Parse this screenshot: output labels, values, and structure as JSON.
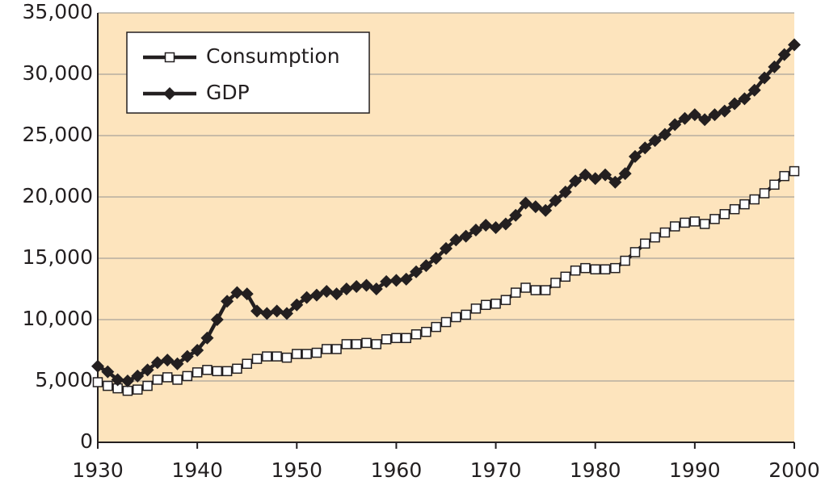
{
  "chart_data": {
    "type": "line",
    "x": [
      1930,
      1931,
      1932,
      1933,
      1934,
      1935,
      1936,
      1937,
      1938,
      1939,
      1940,
      1941,
      1942,
      1943,
      1944,
      1945,
      1946,
      1947,
      1948,
      1949,
      1950,
      1951,
      1952,
      1953,
      1954,
      1955,
      1956,
      1957,
      1958,
      1959,
      1960,
      1961,
      1962,
      1963,
      1964,
      1965,
      1966,
      1967,
      1968,
      1969,
      1970,
      1971,
      1972,
      1973,
      1974,
      1975,
      1976,
      1977,
      1978,
      1979,
      1980,
      1981,
      1982,
      1983,
      1984,
      1985,
      1986,
      1987,
      1988,
      1989,
      1990,
      1991,
      1992,
      1993,
      1994,
      1995,
      1996,
      1997,
      1998,
      1999,
      2000
    ],
    "series": [
      {
        "name": "Consumption",
        "color": "#231f20",
        "marker": "square-open",
        "values": [
          4900,
          4600,
          4400,
          4200,
          4300,
          4600,
          5100,
          5300,
          5100,
          5400,
          5700,
          5900,
          5800,
          5800,
          6000,
          6400,
          6800,
          7000,
          7000,
          6900,
          7200,
          7200,
          7300,
          7600,
          7600,
          8000,
          8000,
          8100,
          8000,
          8400,
          8500,
          8500,
          8800,
          9000,
          9400,
          9800,
          10200,
          10400,
          10900,
          11200,
          11300,
          11600,
          12200,
          12600,
          12400,
          12400,
          13000,
          13500,
          14000,
          14200,
          14100,
          14100,
          14200,
          14800,
          15500,
          16200,
          16700,
          17100,
          17600,
          17900,
          18000,
          17800,
          18200,
          18600,
          19000,
          19400,
          19800,
          20300,
          21000,
          21700,
          22100
        ]
      },
      {
        "name": "GDP",
        "color": "#231f20",
        "marker": "diamond",
        "values": [
          6200,
          5750,
          5100,
          5000,
          5400,
          5900,
          6500,
          6700,
          6400,
          7000,
          7500,
          8500,
          10000,
          11500,
          12200,
          12100,
          10700,
          10500,
          10700,
          10500,
          11200,
          11800,
          12000,
          12300,
          12100,
          12500,
          12700,
          12800,
          12500,
          13100,
          13200,
          13300,
          13900,
          14400,
          15000,
          15800,
          16500,
          16800,
          17300,
          17700,
          17500,
          17800,
          18500,
          19500,
          19200,
          18900,
          19700,
          20400,
          21300,
          21800,
          21500,
          21800,
          21200,
          21900,
          23300,
          24000,
          24600,
          25100,
          25900,
          26400,
          26700,
          26300,
          26700,
          27000,
          27600,
          28000,
          28700,
          29700,
          30600,
          31600,
          32400
        ]
      }
    ],
    "xlim": [
      1930,
      2000
    ],
    "xticks": [
      1930,
      1940,
      1950,
      1960,
      1970,
      1980,
      1990,
      2000
    ],
    "ylim": [
      0,
      35000
    ],
    "yticks": [
      0,
      {
        "value": 5000,
        "label": "5,000"
      },
      {
        "value": 10000,
        "label": "10,000"
      },
      {
        "value": 15000,
        "label": "15,000"
      },
      {
        "value": 20000,
        "label": "20,000"
      },
      {
        "value": 25000,
        "label": "25,000"
      },
      {
        "value": 30000,
        "label": "30,000"
      },
      {
        "value": 35000,
        "label": "35,000"
      }
    ],
    "grid": true,
    "legend": "upper left",
    "background": "#fde4bd"
  }
}
